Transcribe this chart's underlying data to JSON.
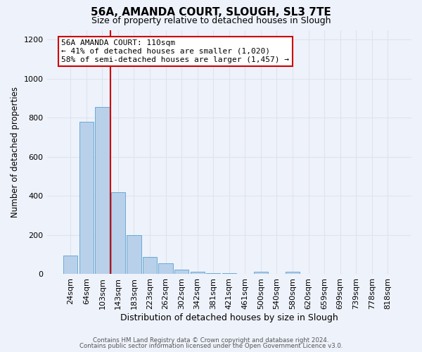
{
  "title": "56A, AMANDA COURT, SLOUGH, SL3 7TE",
  "subtitle": "Size of property relative to detached houses in Slough",
  "xlabel": "Distribution of detached houses by size in Slough",
  "ylabel": "Number of detached properties",
  "bar_color": "#b8d0ea",
  "bar_edge_color": "#6aaad4",
  "bin_labels": [
    "24sqm",
    "64sqm",
    "103sqm",
    "143sqm",
    "183sqm",
    "223sqm",
    "262sqm",
    "302sqm",
    "342sqm",
    "381sqm",
    "421sqm",
    "461sqm",
    "500sqm",
    "540sqm",
    "580sqm",
    "620sqm",
    "659sqm",
    "699sqm",
    "739sqm",
    "778sqm",
    "818sqm"
  ],
  "bar_values": [
    95,
    780,
    855,
    420,
    200,
    85,
    55,
    22,
    12,
    5,
    2,
    0,
    12,
    0,
    12,
    0,
    0,
    0,
    0,
    0,
    0
  ],
  "annotation_title": "56A AMANDA COURT: 110sqm",
  "annotation_line1": "← 41% of detached houses are smaller (1,020)",
  "annotation_line2": "58% of semi-detached houses are larger (1,457) →",
  "annotation_box_color": "#ffffff",
  "annotation_border_color": "#cc0000",
  "vline_color": "#cc0000",
  "vline_x": 2.5,
  "ylim": [
    0,
    1250
  ],
  "yticks": [
    0,
    200,
    400,
    600,
    800,
    1000,
    1200
  ],
  "grid_color": "#dde4f0",
  "background_color": "#eef2fb",
  "footer1": "Contains HM Land Registry data © Crown copyright and database right 2024.",
  "footer2": "Contains public sector information licensed under the Open Government Licence v3.0."
}
